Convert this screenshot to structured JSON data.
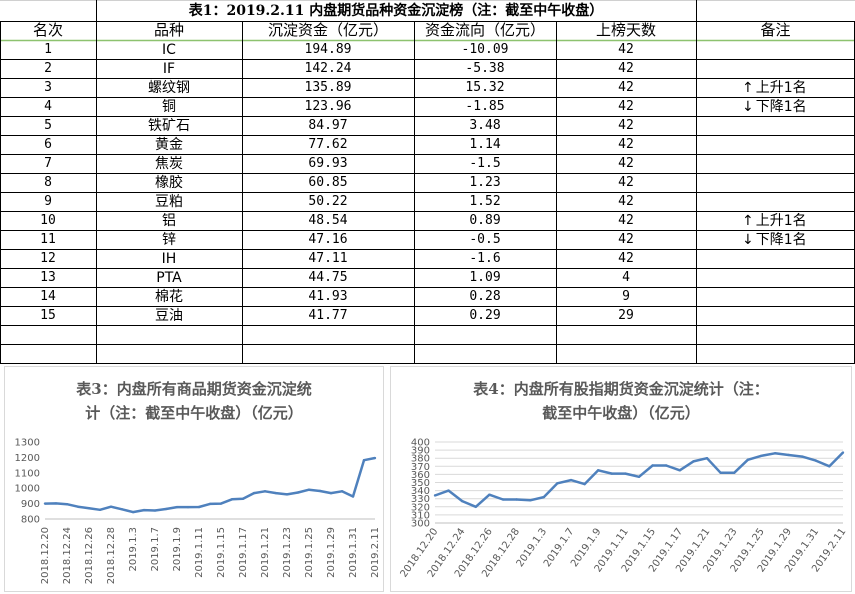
{
  "table": {
    "title": "表1：2019.2.11 内盘期货品种资金沉淀榜（注：截至中午收盘）",
    "headers": [
      "名次",
      "品种",
      "沉淀资金（亿元）",
      "资金流向（亿元）",
      "上榜天数",
      "备注"
    ],
    "rows": [
      {
        "rank": "1",
        "name": "IC",
        "funds": "194.89",
        "flow": "-10.09",
        "days": "42",
        "note": ""
      },
      {
        "rank": "2",
        "name": "IF",
        "funds": "142.24",
        "flow": "-5.38",
        "days": "42",
        "note": ""
      },
      {
        "rank": "3",
        "name": "螺纹钢",
        "funds": "135.89",
        "flow": "15.32",
        "days": "42",
        "note": "上升1名",
        "arrow": "↑"
      },
      {
        "rank": "4",
        "name": "铜",
        "funds": "123.96",
        "flow": "-1.85",
        "days": "42",
        "note": "下降1名",
        "arrow": "↓"
      },
      {
        "rank": "5",
        "name": "铁矿石",
        "funds": "84.97",
        "flow": "3.48",
        "days": "42",
        "note": ""
      },
      {
        "rank": "6",
        "name": "黄金",
        "funds": "77.62",
        "flow": "1.14",
        "days": "42",
        "note": ""
      },
      {
        "rank": "7",
        "name": "焦炭",
        "funds": "69.93",
        "flow": "-1.5",
        "days": "42",
        "note": ""
      },
      {
        "rank": "8",
        "name": "橡胶",
        "funds": "60.85",
        "flow": "1.23",
        "days": "42",
        "note": ""
      },
      {
        "rank": "9",
        "name": "豆粕",
        "funds": "50.22",
        "flow": "1.52",
        "days": "42",
        "note": ""
      },
      {
        "rank": "10",
        "name": "铝",
        "funds": "48.54",
        "flow": "0.89",
        "days": "42",
        "note": "上升1名",
        "arrow": "↑"
      },
      {
        "rank": "11",
        "name": "锌",
        "funds": "47.16",
        "flow": "-0.5",
        "days": "42",
        "note": "下降1名",
        "arrow": "↓"
      },
      {
        "rank": "12",
        "name": "IH",
        "funds": "47.11",
        "flow": "-1.6",
        "days": "42",
        "note": ""
      },
      {
        "rank": "13",
        "name": "PTA",
        "funds": "44.75",
        "flow": "1.09",
        "days": "4",
        "note": ""
      },
      {
        "rank": "14",
        "name": "棉花",
        "funds": "41.93",
        "flow": "0.28",
        "days": "9",
        "note": ""
      },
      {
        "rank": "15",
        "name": "豆油",
        "funds": "41.77",
        "flow": "0.29",
        "days": "29",
        "note": ""
      }
    ]
  },
  "chart_data": [
    {
      "type": "line",
      "title": "表3：内盘所有商品期货资金沉淀统计（注：截至中午收盘）（亿元）",
      "title_lines": [
        "表3：内盘所有商品期货资金沉淀统",
        "计（注：截至中午收盘）（亿元）"
      ],
      "x_tick_labels": [
        "2018.12.20",
        "2018.12.24",
        "2018.12.26",
        "2018.12.28",
        "2019.1.3",
        "2019.1.7",
        "2019.1.9",
        "2019.1.11",
        "2019.1.15",
        "2019.1.17",
        "2019.1.21",
        "2019.1.23",
        "2019.1.25",
        "2019.1.29",
        "2019.1.31",
        "2019.2.11"
      ],
      "values": [
        900,
        901,
        896,
        880,
        870,
        860,
        880,
        863,
        845,
        858,
        855,
        865,
        877,
        877,
        878,
        898,
        900,
        928,
        932,
        968,
        980,
        968,
        960,
        972,
        990,
        982,
        968,
        980,
        946,
        1182,
        1196
      ],
      "ylim": [
        800,
        1300
      ],
      "yticks": [
        800,
        900,
        1000,
        1100,
        1200,
        1300
      ],
      "color": "#4f81bd",
      "grid": false,
      "legend": "none"
    },
    {
      "type": "line",
      "title": "表4：内盘所有股指期货资金沉淀统计（注：截至中午收盘）（亿元）",
      "title_lines": [
        "表4：内盘所有股指期货资金沉淀统计（注：",
        "截至中午收盘）（亿元）"
      ],
      "x_tick_labels": [
        "2018.12.20",
        "2018.12.24",
        "2018.12.26",
        "2018.12.28",
        "2019.1.3",
        "2019.1.7",
        "2019.1.9",
        "2019.1.11",
        "2019.1.15",
        "2019.1.17",
        "2019.1.21",
        "2019.1.23",
        "2019.1.25",
        "2019.1.29",
        "2019.1.31",
        "2019.2.11"
      ],
      "values": [
        334,
        340,
        327,
        320,
        335,
        329,
        329,
        328,
        332,
        349,
        353,
        348,
        365,
        361,
        361,
        357,
        371,
        371,
        365,
        376,
        380,
        362,
        362,
        378,
        383,
        386,
        384,
        382,
        377,
        370,
        387
      ],
      "ylim": [
        300,
        400
      ],
      "yticks": [
        300,
        310,
        320,
        330,
        340,
        350,
        360,
        370,
        380,
        390,
        400
      ],
      "color": "#4f81bd",
      "grid": true,
      "legend": "none"
    }
  ],
  "colors": {
    "grid": "#d0d0d0",
    "border": "#000000",
    "header_line": "#8dc26f",
    "line": "#4f81bd"
  }
}
